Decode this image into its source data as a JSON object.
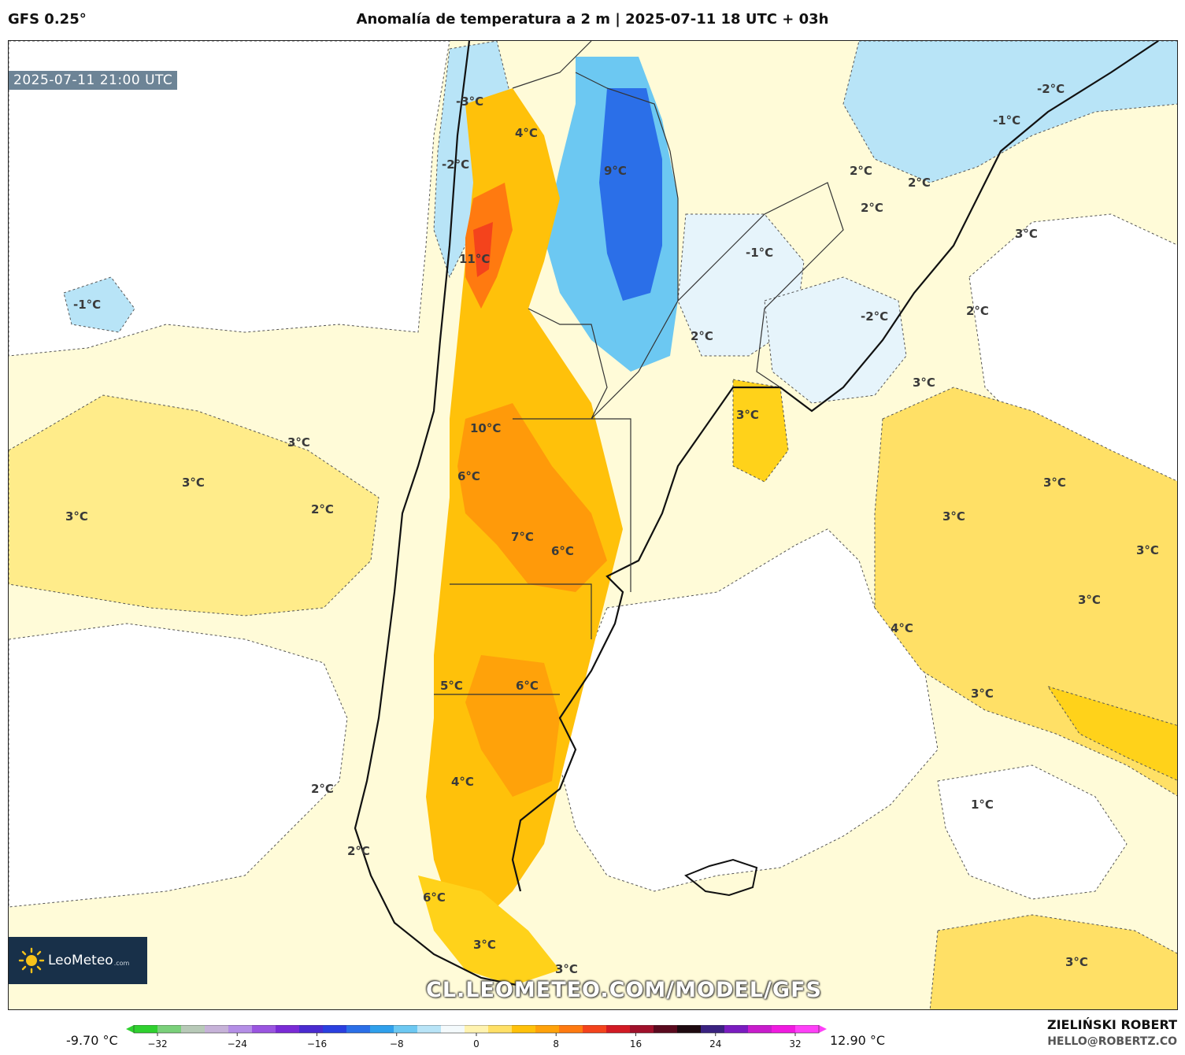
{
  "header": {
    "model": "GFS 0.25°",
    "title": "Anomalía de temperatura a 2 m | 2025-07-11 18 UTC + 03h"
  },
  "map": {
    "valid_time": "2025-07-11 21:00 UTC",
    "watermark": "CL.LEOMETEO.COM/MODEL/GFS",
    "logo": {
      "name": "LeoMeteo",
      "suffix": ".com"
    },
    "labels": [
      {
        "text": "-3°C"
      },
      {
        "text": "4°C"
      },
      {
        "text": "-2°C"
      },
      {
        "text": "9°C"
      },
      {
        "text": "-2°C"
      },
      {
        "text": "-1°C"
      },
      {
        "text": "2°C"
      },
      {
        "text": "2°C"
      },
      {
        "text": "2°C"
      },
      {
        "text": "3°C"
      },
      {
        "text": "11°C"
      },
      {
        "text": "-1°C"
      },
      {
        "text": "-1°C"
      },
      {
        "text": "-2°C"
      },
      {
        "text": "2°C"
      },
      {
        "text": "2°C"
      },
      {
        "text": "3°C"
      },
      {
        "text": "3°C"
      },
      {
        "text": "10°C"
      },
      {
        "text": "3°C"
      },
      {
        "text": "3°C"
      },
      {
        "text": "6°C"
      },
      {
        "text": "3°C"
      },
      {
        "text": "2°C"
      },
      {
        "text": "3°C"
      },
      {
        "text": "3°C"
      },
      {
        "text": "7°C"
      },
      {
        "text": "6°C"
      },
      {
        "text": "3°C"
      },
      {
        "text": "3°C"
      },
      {
        "text": "4°C"
      },
      {
        "text": "5°C"
      },
      {
        "text": "6°C"
      },
      {
        "text": "3°C"
      },
      {
        "text": "2°C"
      },
      {
        "text": "4°C"
      },
      {
        "text": "1°C"
      },
      {
        "text": "2°C"
      },
      {
        "text": "6°C"
      },
      {
        "text": "3°C"
      },
      {
        "text": "3°C"
      },
      {
        "text": "3°C"
      }
    ]
  },
  "colorbar": {
    "min_label": "-9.70 °C",
    "max_label": "12.90 °C",
    "ticks": [
      "−32",
      "−24",
      "−16",
      "−8",
      "0",
      "8",
      "16",
      "24",
      "32"
    ],
    "colors": [
      "#2fd12f",
      "#7ad07a",
      "#b7c9b7",
      "#c6b2d8",
      "#b48ee6",
      "#9a55e0",
      "#7a2bd6",
      "#4a2bd0",
      "#2a3fe0",
      "#2b6fe8",
      "#2fa0ec",
      "#6cc8f2",
      "#b8e4f7",
      "#f4fafc",
      "#fff3b0",
      "#ffe066",
      "#ffc10a",
      "#ffa20a",
      "#ff7a10",
      "#f4431c",
      "#d21a24",
      "#a0102a",
      "#5a0a1e",
      "#1e0a10",
      "#3a2280",
      "#7a1cc0",
      "#c81ccc",
      "#f01ae0",
      "#ff40f8"
    ]
  },
  "footer": {
    "author": "ZIELIŃSKI ROBERT",
    "email": "HELLO@ROBERTZ.CO"
  }
}
